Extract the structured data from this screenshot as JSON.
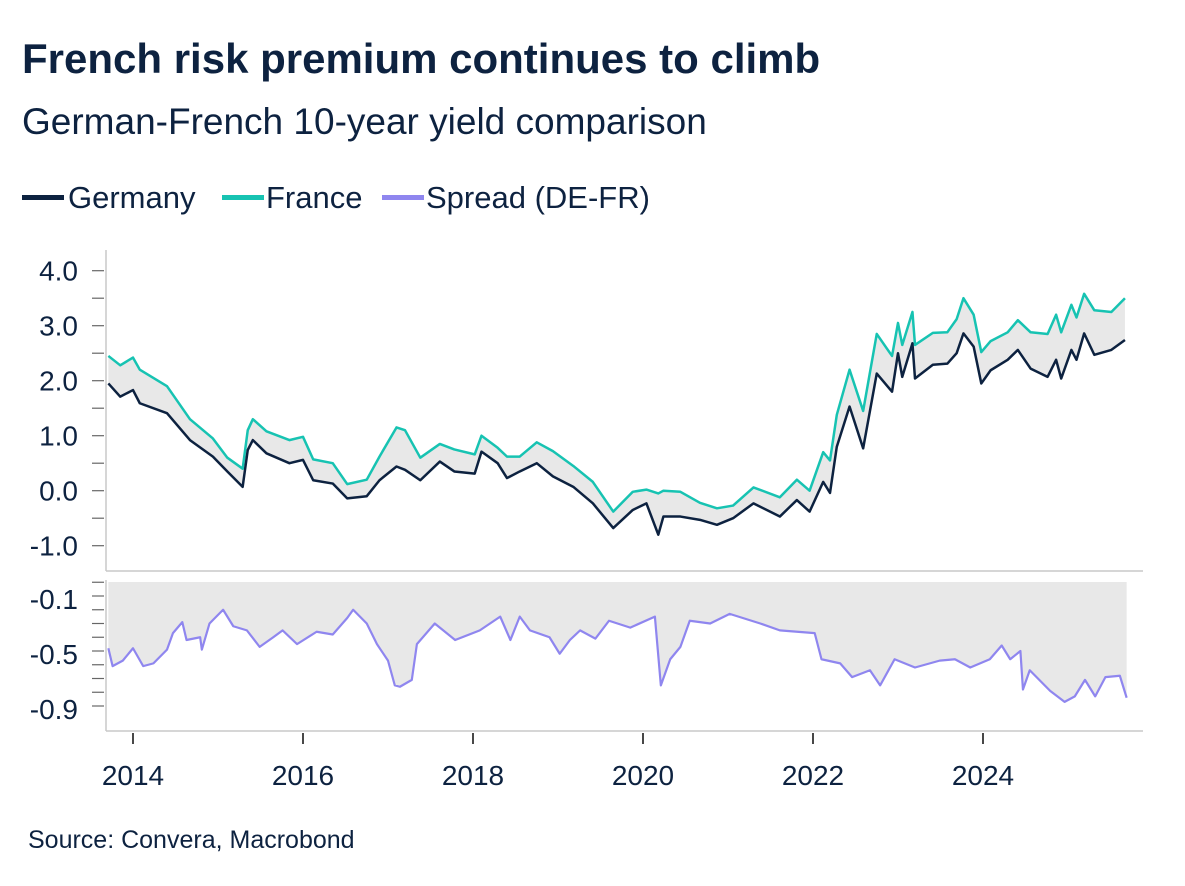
{
  "chart_data": [
    {
      "type": "area",
      "title": "French risk premium continues to climb",
      "subtitle": "German-French 10-year yield comparison",
      "legend": {
        "placement": "top-left",
        "entries": [
          {
            "label": "Germany",
            "color": "#0d2240"
          },
          {
            "label": "France",
            "color": "#17c3b2"
          },
          {
            "label": "Spread (DE-FR)",
            "color": "#8f86ef"
          }
        ]
      },
      "ylim": [
        -1.0,
        4.0
      ],
      "y_ticks": [
        "4.0",
        "3.0",
        "2.0",
        "1.0",
        "0.0",
        "-1.0"
      ],
      "y_tick_values": [
        4,
        3,
        2,
        1,
        0,
        -1
      ],
      "fill_between_color": "#e8e8e8",
      "grid": false,
      "x": [
        2013.71,
        2013.85,
        2014.0,
        2014.08,
        2014.4,
        2014.67,
        2014.94,
        2015.11,
        2015.29,
        2015.35,
        2015.41,
        2015.57,
        2015.84,
        2016.0,
        2016.12,
        2016.35,
        2016.52,
        2016.75,
        2016.9,
        2017.1,
        2017.2,
        2017.38,
        2017.61,
        2017.78,
        2018.02,
        2018.1,
        2018.29,
        2018.4,
        2018.55,
        2018.75,
        2018.94,
        2019.18,
        2019.41,
        2019.65,
        2019.88,
        2020.04,
        2020.18,
        2020.24,
        2020.44,
        2020.67,
        2020.87,
        2021.06,
        2021.3,
        2021.61,
        2021.81,
        2021.96,
        2022.12,
        2022.2,
        2022.28,
        2022.43,
        2022.59,
        2022.75,
        2022.93,
        2023.0,
        2023.05,
        2023.17,
        2023.2,
        2023.41,
        2023.58,
        2023.69,
        2023.77,
        2023.89,
        2023.98,
        2024.09,
        2024.29,
        2024.41,
        2024.56,
        2024.76,
        2024.86,
        2024.92,
        2025.04,
        2025.1,
        2025.19,
        2025.31,
        2025.51,
        2025.67
      ],
      "series": [
        {
          "name": "Germany",
          "values": [
            1.95,
            1.71,
            1.83,
            1.59,
            1.41,
            0.92,
            0.62,
            0.35,
            0.07,
            0.74,
            0.92,
            0.68,
            0.5,
            0.56,
            0.19,
            0.13,
            -0.14,
            -0.1,
            0.19,
            0.44,
            0.38,
            0.19,
            0.53,
            0.35,
            0.31,
            0.71,
            0.5,
            0.23,
            0.35,
            0.5,
            0.26,
            0.07,
            -0.23,
            -0.68,
            -0.35,
            -0.23,
            -0.8,
            -0.47,
            -0.47,
            -0.53,
            -0.62,
            -0.5,
            -0.23,
            -0.47,
            -0.17,
            -0.38,
            0.16,
            -0.04,
            0.8,
            1.53,
            0.77,
            2.13,
            1.8,
            2.5,
            2.07,
            2.68,
            2.04,
            2.29,
            2.31,
            2.5,
            2.86,
            2.62,
            1.95,
            2.19,
            2.38,
            2.56,
            2.22,
            2.07,
            2.38,
            2.04,
            2.56,
            2.38,
            2.86,
            2.47,
            2.56,
            2.74
          ]
        },
        {
          "name": "France",
          "values": [
            2.45,
            2.28,
            2.42,
            2.2,
            1.9,
            1.3,
            0.95,
            0.6,
            0.4,
            1.1,
            1.3,
            1.08,
            0.92,
            0.98,
            0.57,
            0.5,
            0.12,
            0.2,
            0.62,
            1.15,
            1.1,
            0.6,
            0.85,
            0.75,
            0.66,
            1.0,
            0.78,
            0.62,
            0.62,
            0.88,
            0.72,
            0.45,
            0.16,
            -0.38,
            -0.02,
            0.02,
            -0.05,
            0.0,
            -0.02,
            -0.22,
            -0.32,
            -0.27,
            0.06,
            -0.12,
            0.2,
            0.0,
            0.7,
            0.55,
            1.38,
            2.2,
            1.45,
            2.85,
            2.45,
            3.05,
            2.65,
            3.25,
            2.65,
            2.87,
            2.88,
            3.12,
            3.5,
            3.2,
            2.52,
            2.72,
            2.88,
            3.1,
            2.88,
            2.85,
            3.2,
            2.88,
            3.38,
            3.15,
            3.58,
            3.28,
            3.25,
            3.5
          ]
        }
      ]
    },
    {
      "type": "area",
      "ylim": [
        -1.05,
        0.0
      ],
      "y_ticks": [
        "-0.1",
        "-0.5",
        "-0.9"
      ],
      "y_tick_values": [
        -0.1,
        -0.5,
        -0.9
      ],
      "x_ticks": [
        "2014",
        "2016",
        "2018",
        "2020",
        "2022",
        "2024"
      ],
      "x_tick_values": [
        2014,
        2016,
        2018,
        2020,
        2022,
        2024
      ],
      "grid": false,
      "fill_color": "#e8e8e8",
      "x": [
        2013.71,
        2013.76,
        2013.88,
        2014.0,
        2014.12,
        2014.24,
        2014.4,
        2014.47,
        2014.58,
        2014.63,
        2014.79,
        2014.81,
        2014.9,
        2015.06,
        2015.18,
        2015.34,
        2015.49,
        2015.65,
        2015.76,
        2015.93,
        2016.16,
        2016.35,
        2016.52,
        2016.59,
        2016.75,
        2016.87,
        2017.0,
        2017.08,
        2017.14,
        2017.28,
        2017.34,
        2017.55,
        2017.79,
        2018.08,
        2018.32,
        2018.44,
        2018.55,
        2018.67,
        2018.9,
        2019.02,
        2019.14,
        2019.26,
        2019.44,
        2019.6,
        2019.85,
        2020.14,
        2020.21,
        2020.32,
        2020.44,
        2020.55,
        2020.79,
        2021.02,
        2021.38,
        2021.61,
        2022.02,
        2022.1,
        2022.32,
        2022.46,
        2022.67,
        2022.79,
        2022.96,
        2023.2,
        2023.49,
        2023.67,
        2023.85,
        2024.08,
        2024.22,
        2024.32,
        2024.44,
        2024.47,
        2024.55,
        2024.79,
        2024.96,
        2025.08,
        2025.2,
        2025.32,
        2025.44,
        2025.61,
        2025.69
      ],
      "series": [
        {
          "name": "Spread (DE-FR)",
          "values": [
            -0.48,
            -0.61,
            -0.57,
            -0.48,
            -0.61,
            -0.59,
            -0.49,
            -0.37,
            -0.29,
            -0.42,
            -0.4,
            -0.49,
            -0.3,
            -0.2,
            -0.32,
            -0.35,
            -0.47,
            -0.4,
            -0.35,
            -0.45,
            -0.36,
            -0.38,
            -0.26,
            -0.2,
            -0.3,
            -0.45,
            -0.57,
            -0.75,
            -0.76,
            -0.71,
            -0.45,
            -0.3,
            -0.42,
            -0.35,
            -0.25,
            -0.42,
            -0.25,
            -0.35,
            -0.4,
            -0.52,
            -0.42,
            -0.35,
            -0.41,
            -0.28,
            -0.33,
            -0.25,
            -0.75,
            -0.56,
            -0.47,
            -0.28,
            -0.3,
            -0.23,
            -0.3,
            -0.35,
            -0.37,
            -0.56,
            -0.59,
            -0.69,
            -0.64,
            -0.75,
            -0.56,
            -0.62,
            -0.57,
            -0.56,
            -0.62,
            -0.56,
            -0.46,
            -0.56,
            -0.5,
            -0.78,
            -0.64,
            -0.79,
            -0.87,
            -0.83,
            -0.71,
            -0.83,
            -0.69,
            -0.68,
            -0.84
          ]
        }
      ]
    }
  ],
  "header": {
    "title": "French risk premium continues to climb",
    "subtitle": "German-French 10-year yield comparison"
  },
  "legend": {
    "germany": "Germany",
    "france": "France",
    "spread": "Spread (DE-FR)"
  },
  "footer": {
    "source": "Source: Convera, Macrobond"
  }
}
